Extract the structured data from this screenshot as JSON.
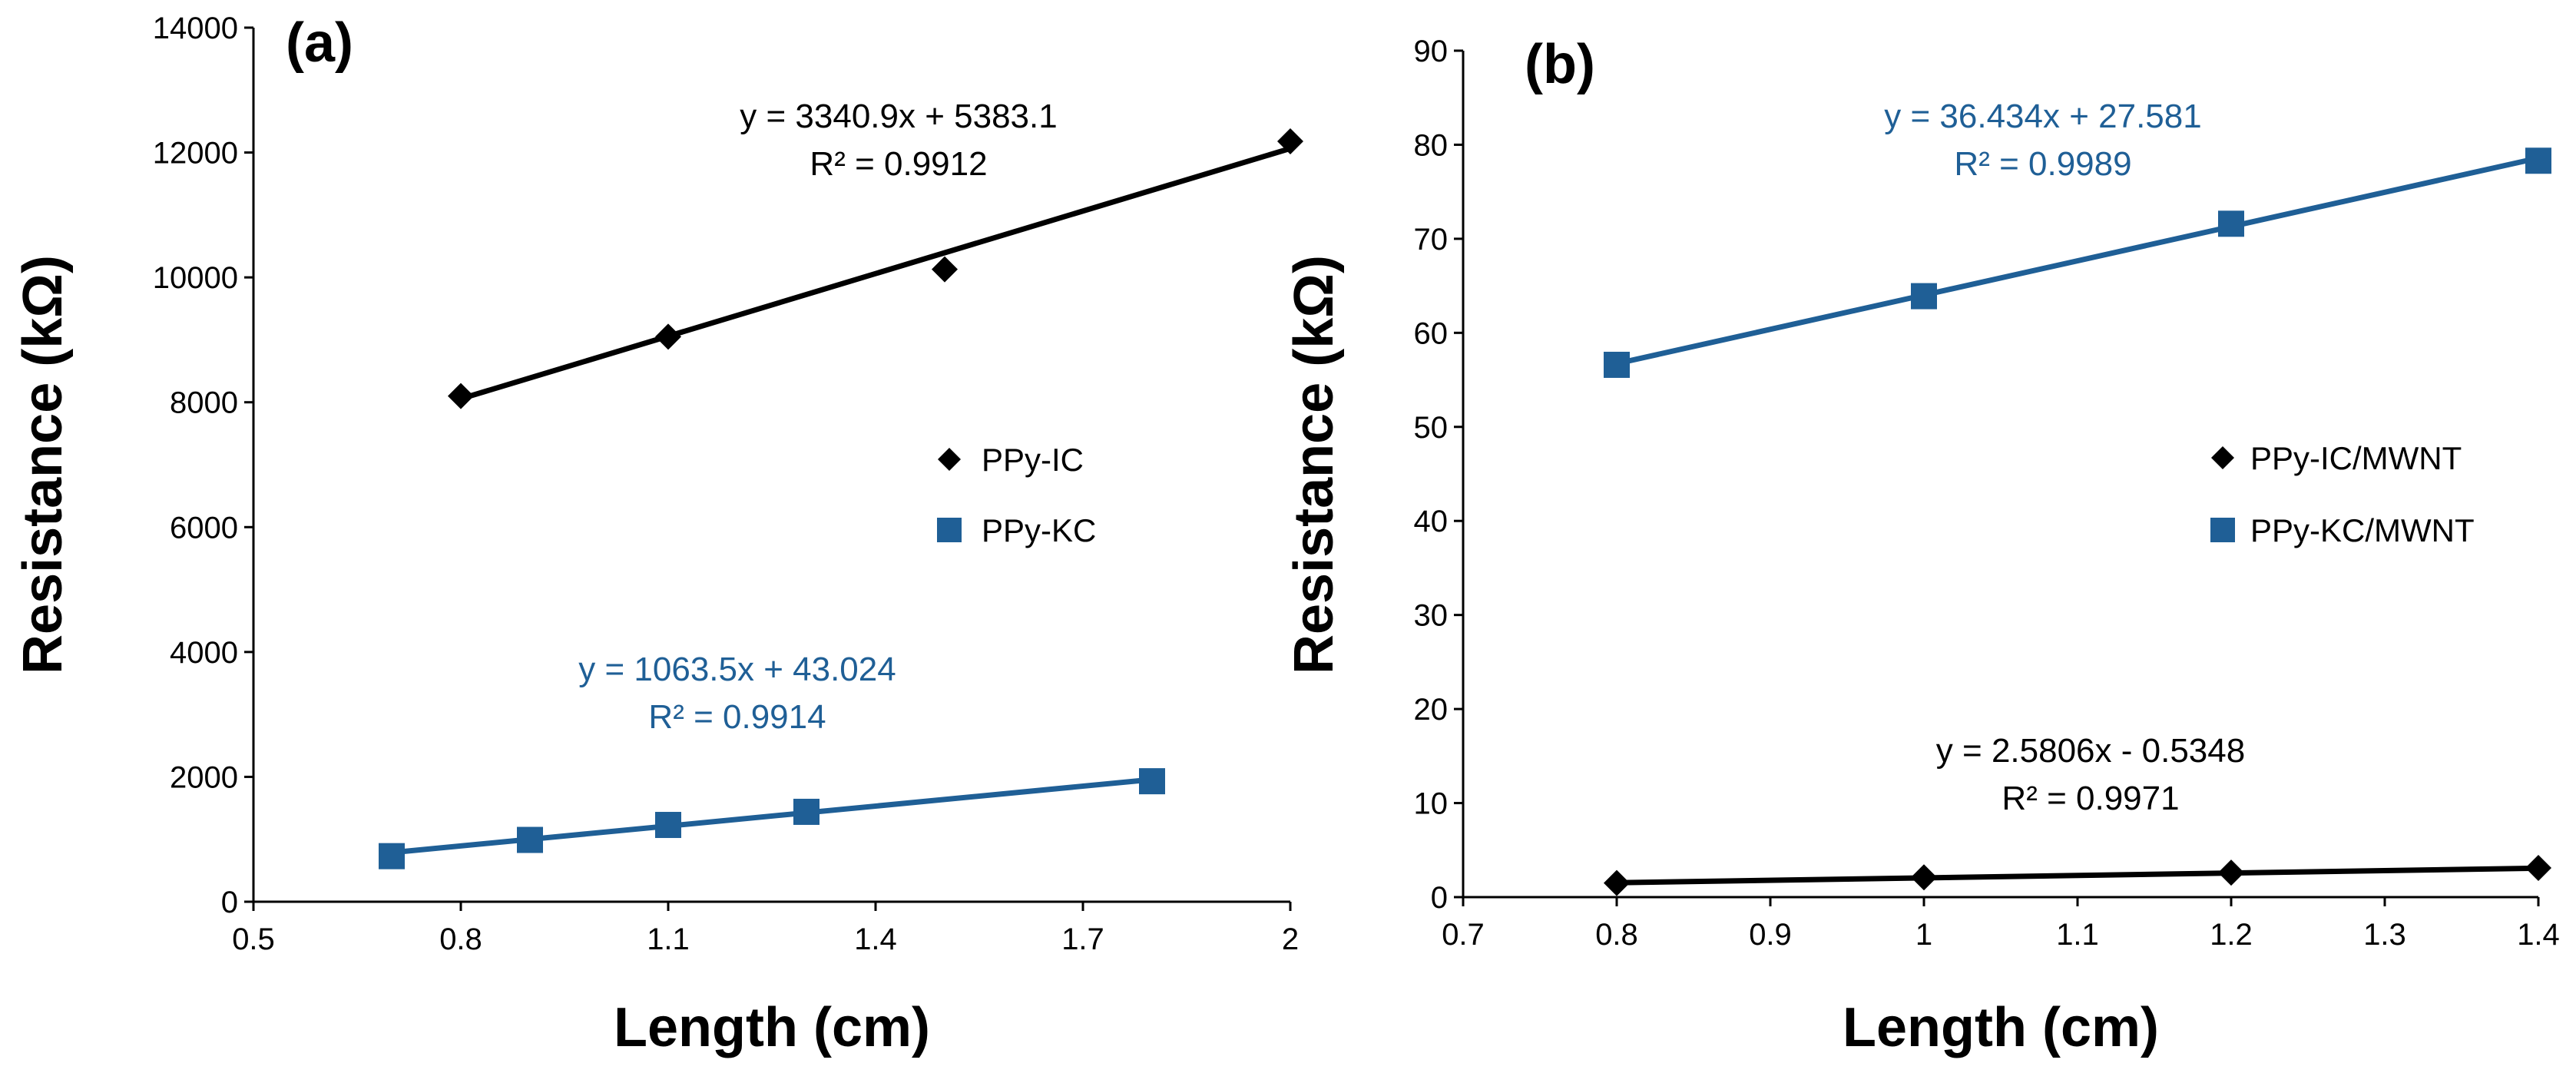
{
  "chart_data": [
    {
      "type": "scatter",
      "panel_label": "(a)",
      "xlabel": "Length (cm)",
      "ylabel": "Resistance (kΩ)",
      "xlim": [
        0.5,
        2
      ],
      "ylim": [
        0,
        14000
      ],
      "x_ticks": [
        0.5,
        0.8,
        1.1,
        1.4,
        1.7,
        2
      ],
      "x_tick_labels": [
        "0.5",
        "0.8",
        "1.1",
        "1.4",
        "1.7",
        "2"
      ],
      "y_ticks": [
        0,
        2000,
        4000,
        6000,
        8000,
        10000,
        12000,
        14000
      ],
      "y_tick_labels": [
        "0",
        "2000",
        "4000",
        "6000",
        "8000",
        "10000",
        "12000",
        "14000"
      ],
      "grid": false,
      "legend_position": "center-right",
      "series": [
        {
          "name": "PPy-IC",
          "marker": "diamond",
          "color": "#000000",
          "x": [
            0.8,
            1.1,
            1.5,
            2.0
          ],
          "y": [
            8100,
            9050,
            10130,
            12180
          ],
          "trendline": {
            "slope": 3340.9,
            "intercept": 5383.1,
            "x_range": [
              0.8,
              2.0
            ]
          },
          "equation": "y = 3340.9x + 5383.1",
          "r_squared": "R² = 0.9912"
        },
        {
          "name": "PPy-KC",
          "marker": "square",
          "color": "#1f5f96",
          "x": [
            0.7,
            0.9,
            1.1,
            1.3,
            1.8
          ],
          "y": [
            730,
            990,
            1230,
            1440,
            1930
          ],
          "trendline": {
            "slope": 1063.5,
            "intercept": 43.024,
            "x_range": [
              0.7,
              1.8
            ]
          },
          "equation": "y = 1063.5x + 43.024",
          "r_squared": "R² = 0.9914"
        }
      ]
    },
    {
      "type": "scatter",
      "panel_label": "(b)",
      "xlabel": "Length (cm)",
      "ylabel": "Resistance (kΩ)",
      "xlim": [
        0.7,
        1.4
      ],
      "ylim": [
        0,
        90
      ],
      "x_ticks": [
        0.7,
        0.8,
        0.9,
        1.0,
        1.1,
        1.2,
        1.3,
        1.4
      ],
      "x_tick_labels": [
        "0.7",
        "0.8",
        "0.9",
        "1",
        "1.1",
        "1.2",
        "1.3",
        "1.4"
      ],
      "y_ticks": [
        0,
        10,
        20,
        30,
        40,
        50,
        60,
        70,
        80,
        90
      ],
      "y_tick_labels": [
        "0",
        "10",
        "20",
        "30",
        "40",
        "50",
        "60",
        "70",
        "80",
        "90"
      ],
      "grid": false,
      "legend_position": "center-right",
      "series": [
        {
          "name": "PPy-IC/MWNT",
          "marker": "diamond",
          "color": "#000000",
          "x": [
            0.8,
            1.0,
            1.2,
            1.4
          ],
          "y": [
            1.5,
            2.1,
            2.6,
            3.1
          ],
          "trendline": {
            "slope": 2.5806,
            "intercept": -0.5348,
            "x_range": [
              0.8,
              1.4
            ]
          },
          "equation": "y = 2.5806x - 0.5348",
          "r_squared": "R² = 0.9971"
        },
        {
          "name": "PPy-KC/MWNT",
          "marker": "square",
          "color": "#1f5f96",
          "x": [
            0.8,
            1.0,
            1.2,
            1.4
          ],
          "y": [
            56.6,
            63.9,
            71.6,
            78.3
          ],
          "trendline": {
            "slope": 36.434,
            "intercept": 27.581,
            "x_range": [
              0.8,
              1.4
            ]
          },
          "equation": "y = 36.434x + 27.581",
          "r_squared": "R² = 0.9989"
        }
      ]
    }
  ]
}
